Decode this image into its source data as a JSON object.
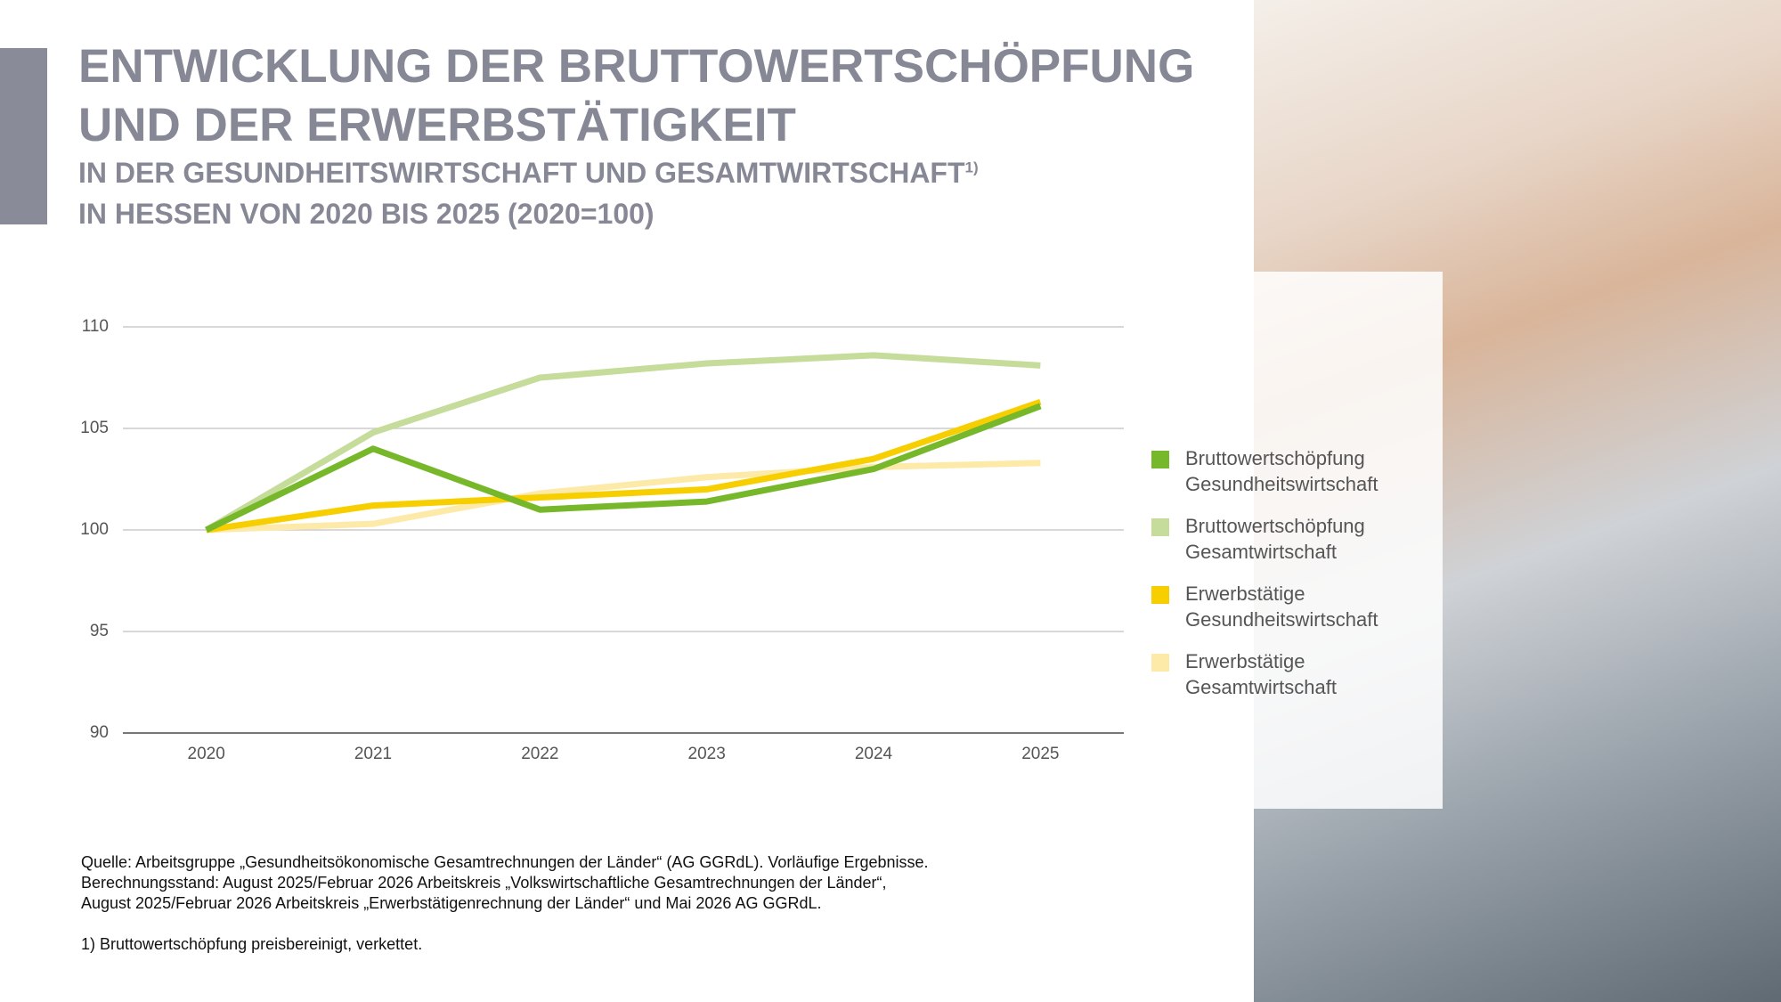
{
  "chart_data": {
    "type": "line",
    "title": "ENTWICKLUNG DER BRUTTOWERTSCHÖPFUNG UND DER ERWERBSTÄTIGKEIT",
    "subtitle": "IN DER GESUNDHEITSWIRTSCHAFT UND GESAMTWIRTSCHAFT",
    "subtitle_note": "1)",
    "subtitle2": "IN HESSEN VON 2020 BIS 2025 (2020=100)",
    "categories": [
      "2020",
      "2021",
      "2022",
      "2023",
      "2024",
      "2025"
    ],
    "series": [
      {
        "name": "Bruttowertschöpfung Gesundheitswirtschaft",
        "color": "#76b82a",
        "values": [
          100,
          104.0,
          101.0,
          101.4,
          103.0,
          106.1
        ]
      },
      {
        "name": "Bruttowertschöpfung Gesamtwirtschaft",
        "color": "#c5dc9a",
        "values": [
          100,
          104.8,
          107.5,
          108.2,
          108.6,
          108.1
        ]
      },
      {
        "name": "Erwerbstätige Gesundheitswirtschaft",
        "color": "#f7cf00",
        "values": [
          100,
          101.2,
          101.6,
          102.0,
          103.5,
          106.3
        ]
      },
      {
        "name": "Erwerbstätige Gesamtwirtschaft",
        "color": "#fdeaa8",
        "values": [
          100,
          100.3,
          101.8,
          102.6,
          103.1,
          103.3
        ]
      }
    ],
    "ylim": [
      90,
      110
    ],
    "yticks": [
      90,
      95,
      100,
      105,
      110
    ],
    "grid": true,
    "notes": [
      "Quelle: Arbeitsgruppe „Gesundheitsökonomische Gesamtrechnungen der Länder“ (AG GGRdL). Vorläufige Ergebnisse.",
      "Berechnungsstand: August 2025/Februar 2026 Arbeitskreis „Volkswirtschaftliche Gesamtrechnungen der Länder“,",
      "August 2025/Februar 2026 Arbeitskreis „Erwerbstätigenrechnung der Länder“ und Mai 2026 AG GGRdL.",
      "1) Bruttowertschöpfung preisbereinigt, verkettet."
    ]
  }
}
